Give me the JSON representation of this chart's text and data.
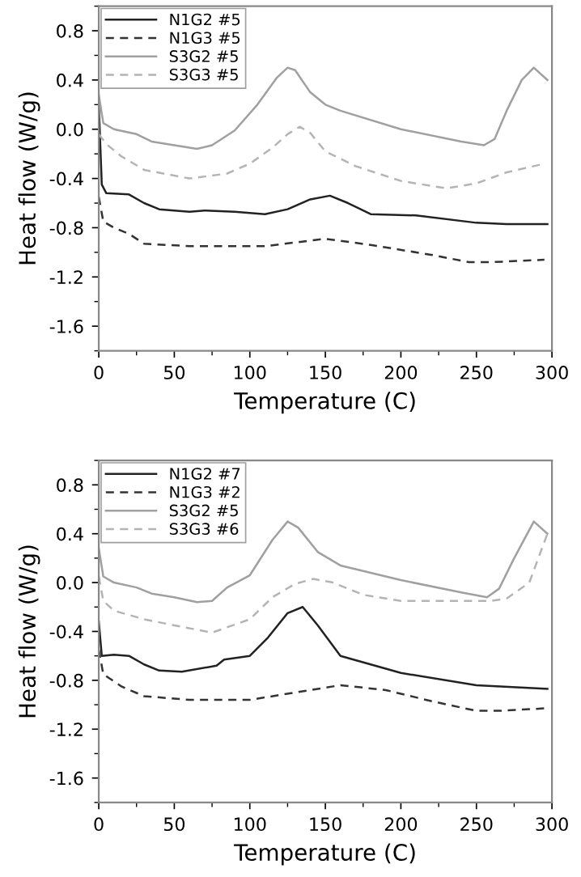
{
  "chart_data": [
    {
      "type": "line",
      "xlabel": "Temperature (C)",
      "ylabel": "Heat flow (W/g)",
      "xlim": [
        0,
        300
      ],
      "ylim": [
        -1.8,
        1.0
      ],
      "xticks": [
        0,
        50,
        100,
        150,
        200,
        250,
        300
      ],
      "yticks": [
        -1.6,
        -1.2,
        -0.8,
        -0.4,
        {
          "value": 0,
          "label": "0.0"
        },
        0.4,
        0.8
      ],
      "grid": false,
      "legend": "top left",
      "series": [
        {
          "name": "N1G2 #5",
          "color": "#222222",
          "line_style": "solid",
          "x": [
            0,
            2,
            5,
            20,
            30,
            40,
            60,
            70,
            90,
            110,
            125,
            140,
            153,
            165,
            180,
            210,
            250,
            270,
            297
          ],
          "values": [
            0.2,
            -0.45,
            -0.52,
            -0.53,
            -0.6,
            -0.65,
            -0.67,
            -0.66,
            -0.67,
            -0.69,
            -0.65,
            -0.57,
            -0.54,
            -0.6,
            -0.69,
            -0.7,
            -0.76,
            -0.77,
            -0.77
          ]
        },
        {
          "name": "N1G3 #5",
          "color": "#333333",
          "line_style": "dashed",
          "x": [
            0,
            3,
            10,
            20,
            30,
            60,
            110,
            150,
            180,
            220,
            245,
            260,
            295
          ],
          "values": [
            -0.55,
            -0.75,
            -0.8,
            -0.85,
            -0.93,
            -0.95,
            -0.95,
            -0.89,
            -0.94,
            -1.02,
            -1.08,
            -1.08,
            -1.06
          ]
        },
        {
          "name": "S3G2 #5",
          "color": "#a0a0a0",
          "line_style": "solid",
          "x": [
            0,
            3,
            10,
            25,
            35,
            50,
            65,
            75,
            90,
            105,
            118,
            125,
            130,
            140,
            150,
            160,
            200,
            240,
            255,
            262,
            270,
            280,
            288,
            297
          ],
          "values": [
            0.28,
            0.05,
            0.0,
            -0.04,
            -0.1,
            -0.13,
            -0.16,
            -0.13,
            -0.01,
            0.2,
            0.42,
            0.5,
            0.48,
            0.3,
            0.2,
            0.15,
            0.0,
            -0.1,
            -0.13,
            -0.08,
            0.15,
            0.4,
            0.5,
            0.4
          ]
        },
        {
          "name": "S3G3 #5",
          "color": "#b4b4b4",
          "line_style": "dashed",
          "x": [
            0,
            5,
            15,
            30,
            60,
            85,
            100,
            115,
            125,
            133,
            140,
            150,
            170,
            200,
            230,
            250,
            270,
            295
          ],
          "values": [
            -0.04,
            -0.12,
            -0.22,
            -0.33,
            -0.4,
            -0.36,
            -0.28,
            -0.15,
            -0.04,
            0.02,
            -0.03,
            -0.18,
            -0.3,
            -0.42,
            -0.48,
            -0.44,
            -0.35,
            -0.28
          ]
        }
      ]
    },
    {
      "type": "line",
      "xlabel": "Temperature (C)",
      "ylabel": "Heat flow (W/g)",
      "xlim": [
        0,
        300
      ],
      "ylim": [
        -1.8,
        1.0
      ],
      "xticks": [
        0,
        50,
        100,
        150,
        200,
        250,
        300
      ],
      "yticks": [
        -1.6,
        -1.2,
        -0.8,
        -0.4,
        {
          "value": 0,
          "label": "0.0"
        },
        0.4,
        0.8
      ],
      "grid": false,
      "legend": "top left",
      "series": [
        {
          "name": "N1G2 #7",
          "color": "#222222",
          "line_style": "solid",
          "x": [
            0,
            2,
            10,
            20,
            30,
            40,
            55,
            78,
            83,
            100,
            112,
            125,
            135,
            145,
            160,
            200,
            250,
            297
          ],
          "values": [
            -0.32,
            -0.6,
            -0.59,
            -0.6,
            -0.67,
            -0.72,
            -0.73,
            -0.68,
            -0.63,
            -0.6,
            -0.45,
            -0.25,
            -0.2,
            -0.35,
            -0.6,
            -0.74,
            -0.84,
            -0.87
          ]
        },
        {
          "name": "N1G3 #2",
          "color": "#333333",
          "line_style": "dashed",
          "x": [
            0,
            3,
            15,
            30,
            60,
            100,
            130,
            160,
            190,
            220,
            250,
            265,
            295
          ],
          "values": [
            -0.55,
            -0.75,
            -0.85,
            -0.93,
            -0.96,
            -0.96,
            -0.9,
            -0.84,
            -0.88,
            -0.97,
            -1.05,
            -1.05,
            -1.03
          ]
        },
        {
          "name": "S3G2 #5",
          "color": "#a0a0a0",
          "line_style": "solid",
          "x": [
            0,
            3,
            10,
            25,
            35,
            50,
            65,
            75,
            85,
            100,
            115,
            125,
            132,
            145,
            160,
            200,
            240,
            257,
            265,
            275,
            288,
            297
          ],
          "values": [
            0.28,
            0.05,
            0.0,
            -0.04,
            -0.09,
            -0.12,
            -0.16,
            -0.15,
            -0.04,
            0.06,
            0.35,
            0.5,
            0.45,
            0.25,
            0.14,
            0.02,
            -0.08,
            -0.12,
            -0.05,
            0.2,
            0.5,
            0.4
          ]
        },
        {
          "name": "S3G3 #6",
          "color": "#b4b4b4",
          "line_style": "dashed",
          "x": [
            0,
            3,
            10,
            30,
            50,
            75,
            100,
            115,
            130,
            142,
            155,
            175,
            200,
            260,
            270,
            285,
            297
          ],
          "values": [
            0.05,
            -0.15,
            -0.23,
            -0.3,
            -0.35,
            -0.41,
            -0.3,
            -0.12,
            -0.01,
            0.03,
            0.0,
            -0.1,
            -0.15,
            -0.15,
            -0.13,
            0.0,
            0.4
          ]
        }
      ]
    }
  ]
}
